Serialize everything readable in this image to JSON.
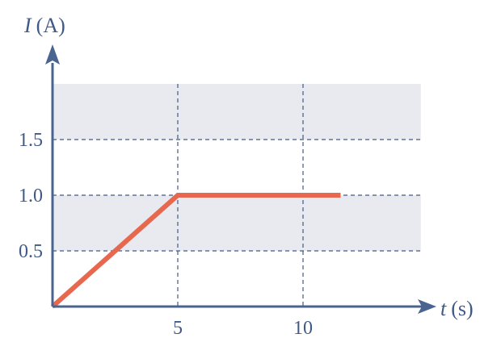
{
  "chart_data": {
    "type": "line",
    "xlabel": {
      "symbol": "t",
      "unit": "(s)"
    },
    "ylabel": {
      "symbol": "I",
      "unit": "(A)"
    },
    "x_ticks": [
      {
        "value": 5,
        "label": "5"
      },
      {
        "value": 10,
        "label": "10"
      }
    ],
    "y_ticks": [
      {
        "value": 0.5,
        "label": "0.5"
      },
      {
        "value": 1.0,
        "label": "1.0"
      },
      {
        "value": 1.5,
        "label": "1.5"
      }
    ],
    "series": [
      {
        "x": [
          0,
          5,
          11.5
        ],
        "y": [
          0,
          1.0,
          1.0
        ],
        "color": "#e8684f"
      }
    ],
    "xlim": [
      0,
      14.7
    ],
    "ylim": [
      0,
      2.0
    ],
    "shaded_bands": [
      [
        0.5,
        1.0
      ],
      [
        1.5,
        2.0
      ]
    ],
    "band_color": "#e9eaef",
    "axis_color": "#4a6490",
    "gridline_color": "#3f5a86",
    "grid": true
  }
}
